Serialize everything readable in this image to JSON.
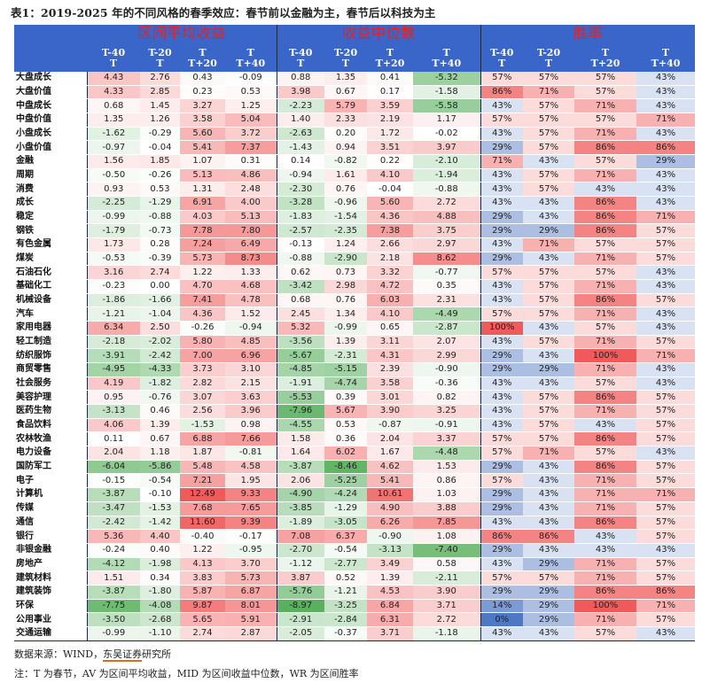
{
  "title": "表1：2019-2025 年的不同风格的春季效应：春节前以金融为主，春节后以科技为主",
  "groups": [
    "区间平均收益",
    "收益中位数",
    "胜率"
  ],
  "subheaders": [
    [
      "T-40",
      "T"
    ],
    [
      "T-20",
      "T"
    ],
    [
      "T",
      "T+20"
    ],
    [
      "T",
      "T+40"
    ],
    [
      "T-40",
      "T"
    ],
    [
      "T-20",
      "T"
    ],
    [
      "T",
      "T+20"
    ],
    [
      "T",
      "T+40"
    ],
    [
      "T-40",
      "T"
    ],
    [
      "T-20",
      "T"
    ],
    [
      "T",
      "T+20"
    ],
    [
      "T",
      "T+40"
    ]
  ],
  "colors": {
    "header_bg": "#3a66c9",
    "group_title": "#e8201f",
    "pos": "#f05a5a",
    "neg": "#58b05d",
    "wr_high": "#f05a5a",
    "wr_low": "#4f78c4"
  },
  "rows": [
    {
      "name": "大盘成长",
      "v": [
        "4.43",
        "2.76",
        "0.43",
        "-0.09",
        "0.88",
        "1.35",
        "0.41",
        "-5.32",
        "57%",
        "57%",
        "57%",
        "43%"
      ]
    },
    {
      "name": "大盘价值",
      "v": [
        "4.33",
        "2.85",
        "0.23",
        "0.53",
        "3.98",
        "0.67",
        "0.17",
        "-1.58",
        "86%",
        "71%",
        "57%",
        "43%"
      ]
    },
    {
      "name": "中盘成长",
      "v": [
        "0.68",
        "1.45",
        "3.27",
        "1.25",
        "-2.23",
        "5.79",
        "3.59",
        "-5.58",
        "43%",
        "57%",
        "71%",
        "43%"
      ]
    },
    {
      "name": "中盘价值",
      "v": [
        "1.35",
        "1.26",
        "3.58",
        "5.04",
        "1.40",
        "2.33",
        "2.19",
        "1.17",
        "57%",
        "57%",
        "57%",
        "71%"
      ]
    },
    {
      "name": "小盘成长",
      "v": [
        "-1.62",
        "-0.29",
        "5.60",
        "3.72",
        "-2.63",
        "0.20",
        "1.72",
        "-0.02",
        "43%",
        "57%",
        "71%",
        "43%"
      ]
    },
    {
      "name": "小盘价值",
      "v": [
        "-0.97",
        "-0.04",
        "5.41",
        "7.37",
        "-1.43",
        "0.94",
        "3.51",
        "3.97",
        "29%",
        "57%",
        "86%",
        "86%"
      ]
    },
    {
      "name": "金融",
      "v": [
        "1.56",
        "1.85",
        "1.07",
        "0.31",
        "0.14",
        "-0.82",
        "0.22",
        "-2.10",
        "71%",
        "43%",
        "57%",
        "29%"
      ]
    },
    {
      "name": "周期",
      "v": [
        "-0.50",
        "-0.26",
        "5.13",
        "4.86",
        "-0.94",
        "1.61",
        "4.10",
        "-1.94",
        "43%",
        "57%",
        "71%",
        "43%"
      ]
    },
    {
      "name": "消费",
      "v": [
        "0.93",
        "0.53",
        "1.31",
        "2.48",
        "-2.30",
        "0.76",
        "-0.04",
        "-0.88",
        "43%",
        "57%",
        "43%",
        "43%"
      ]
    },
    {
      "name": "成长",
      "v": [
        "-2.25",
        "-1.29",
        "6.91",
        "4.00",
        "-3.28",
        "-0.96",
        "5.60",
        "2.72",
        "43%",
        "43%",
        "86%",
        "43%"
      ]
    },
    {
      "name": "稳定",
      "v": [
        "-0.99",
        "-0.88",
        "4.03",
        "5.13",
        "-1.83",
        "-1.54",
        "4.36",
        "4.88",
        "29%",
        "43%",
        "86%",
        "71%"
      ]
    },
    {
      "name": "钢铁",
      "v": [
        "-1.79",
        "-0.73",
        "7.78",
        "7.80",
        "-2.57",
        "-2.35",
        "7.38",
        "3.75",
        "29%",
        "29%",
        "86%",
        "57%"
      ]
    },
    {
      "name": "有色金属",
      "v": [
        "1.73",
        "0.28",
        "7.24",
        "6.49",
        "-0.13",
        "1.24",
        "2.66",
        "2.97",
        "43%",
        "71%",
        "57%",
        "57%"
      ]
    },
    {
      "name": "煤炭",
      "v": [
        "-0.53",
        "-0.39",
        "5.73",
        "8.73",
        "-0.88",
        "-2.90",
        "2.18",
        "8.62",
        "29%",
        "43%",
        "71%",
        "57%"
      ]
    },
    {
      "name": "石油石化",
      "v": [
        "3.16",
        "2.74",
        "1.22",
        "1.33",
        "0.62",
        "0.73",
        "3.32",
        "-0.77",
        "57%",
        "57%",
        "57%",
        "43%"
      ]
    },
    {
      "name": "基础化工",
      "v": [
        "-0.23",
        "0.00",
        "4.70",
        "4.68",
        "-3.42",
        "2.98",
        "4.72",
        "0.35",
        "43%",
        "57%",
        "71%",
        "43%"
      ]
    },
    {
      "name": "机械设备",
      "v": [
        "-1.86",
        "-1.66",
        "7.41",
        "4.78",
        "0.68",
        "0.76",
        "6.03",
        "2.31",
        "43%",
        "57%",
        "86%",
        "57%"
      ]
    },
    {
      "name": "汽车",
      "v": [
        "-1.21",
        "-1.04",
        "4.36",
        "1.52",
        "2.45",
        "1.34",
        "4.10",
        "-4.49",
        "57%",
        "57%",
        "71%",
        "43%"
      ]
    },
    {
      "name": "家用电器",
      "v": [
        "6.34",
        "2.50",
        "-0.26",
        "-0.94",
        "5.32",
        "-0.99",
        "0.65",
        "-2.87",
        "100%",
        "43%",
        "57%",
        "43%"
      ]
    },
    {
      "name": "轻工制造",
      "v": [
        "-2.18",
        "-2.02",
        "5.80",
        "4.85",
        "-3.56",
        "1.39",
        "3.11",
        "2.07",
        "43%",
        "57%",
        "71%",
        "57%"
      ]
    },
    {
      "name": "纺织服饰",
      "v": [
        "-3.91",
        "-2.42",
        "7.00",
        "6.96",
        "-5.67",
        "-2.31",
        "4.31",
        "2.99",
        "29%",
        "43%",
        "100%",
        "71%"
      ]
    },
    {
      "name": "商贸零售",
      "v": [
        "-4.95",
        "-4.33",
        "3.73",
        "3.10",
        "-4.85",
        "-5.15",
        "2.39",
        "-0.90",
        "29%",
        "29%",
        "71%",
        "43%"
      ]
    },
    {
      "name": "社会服务",
      "v": [
        "4.19",
        "-1.82",
        "2.82",
        "2.15",
        "-1.91",
        "-4.74",
        "3.58",
        "-0.36",
        "43%",
        "43%",
        "57%",
        "43%"
      ]
    },
    {
      "name": "美容护理",
      "v": [
        "0.95",
        "-0.76",
        "3.07",
        "3.63",
        "-5.53",
        "0.39",
        "3.01",
        "0.82",
        "43%",
        "57%",
        "86%",
        "57%"
      ]
    },
    {
      "name": "医药生物",
      "v": [
        "-3.13",
        "0.46",
        "2.56",
        "3.96",
        "-7.96",
        "5.67",
        "3.90",
        "3.25",
        "43%",
        "57%",
        "71%",
        "57%"
      ]
    },
    {
      "name": "食品饮料",
      "v": [
        "4.06",
        "1.39",
        "-1.53",
        "0.98",
        "-4.55",
        "0.53",
        "-0.87",
        "-0.91",
        "43%",
        "57%",
        "43%",
        "57%"
      ]
    },
    {
      "name": "农林牧渔",
      "v": [
        "0.11",
        "0.67",
        "6.88",
        "7.66",
        "1.58",
        "0.36",
        "2.04",
        "3.37",
        "57%",
        "57%",
        "86%",
        "57%"
      ]
    },
    {
      "name": "电力设备",
      "v": [
        "2.04",
        "1.18",
        "1.87",
        "-0.81",
        "1.64",
        "6.02",
        "1.67",
        "-4.48",
        "57%",
        "71%",
        "57%",
        "43%"
      ]
    },
    {
      "name": "国防军工",
      "v": [
        "-6.04",
        "-5.86",
        "5.48",
        "4.58",
        "-3.87",
        "-8.46",
        "4.62",
        "1.53",
        "29%",
        "43%",
        "86%",
        "57%"
      ]
    },
    {
      "name": "电子",
      "v": [
        "-0.15",
        "-0.54",
        "7.21",
        "1.95",
        "2.06",
        "-5.25",
        "5.41",
        "0.86",
        "57%",
        "43%",
        "71%",
        "57%"
      ]
    },
    {
      "name": "计算机",
      "v": [
        "-3.87",
        "-0.10",
        "12.49",
        "9.33",
        "-4.90",
        "-4.24",
        "10.61",
        "1.03",
        "29%",
        "43%",
        "71%",
        "71%"
      ]
    },
    {
      "name": "传媒",
      "v": [
        "-3.47",
        "-1.53",
        "7.68",
        "7.65",
        "-3.85",
        "-1.29",
        "4.90",
        "3.88",
        "29%",
        "43%",
        "71%",
        "57%"
      ]
    },
    {
      "name": "通信",
      "v": [
        "-2.42",
        "-1.42",
        "11.60",
        "9.39",
        "-1.89",
        "-3.05",
        "6.26",
        "7.85",
        "43%",
        "43%",
        "86%",
        "57%"
      ]
    },
    {
      "name": "银行",
      "v": [
        "5.36",
        "4.40",
        "-0.40",
        "-0.17",
        "7.08",
        "6.37",
        "-0.90",
        "1.08",
        "86%",
        "86%",
        "43%",
        "57%"
      ]
    },
    {
      "name": "非银金融",
      "v": [
        "-0.24",
        "0.40",
        "1.22",
        "-0.95",
        "-2.70",
        "-0.54",
        "-3.13",
        "-7.40",
        "29%",
        "43%",
        "43%",
        "43%"
      ]
    },
    {
      "name": "房地产",
      "v": [
        "-4.12",
        "-1.98",
        "4.13",
        "3.70",
        "-1.12",
        "-2.77",
        "3.49",
        "0.58",
        "43%",
        "29%",
        "71%",
        "57%"
      ]
    },
    {
      "name": "建筑材料",
      "v": [
        "1.51",
        "0.34",
        "3.83",
        "5.73",
        "3.87",
        "0.52",
        "1.39",
        "-2.11",
        "57%",
        "57%",
        "71%",
        "57%"
      ]
    },
    {
      "name": "建筑装饰",
      "v": [
        "-3.87",
        "-1.80",
        "5.87",
        "6.87",
        "-5.76",
        "-1.21",
        "4.53",
        "3.90",
        "29%",
        "29%",
        "86%",
        "86%"
      ]
    },
    {
      "name": "环保",
      "v": [
        "-7.75",
        "-4.08",
        "9.87",
        "8.01",
        "-8.97",
        "-3.25",
        "6.84",
        "3.71",
        "14%",
        "29%",
        "100%",
        "71%"
      ]
    },
    {
      "name": "公用事业",
      "v": [
        "-3.50",
        "-2.68",
        "5.65",
        "5.91",
        "-2.91",
        "-2.84",
        "6.31",
        "2.72",
        "0%",
        "29%",
        "71%",
        "57%"
      ]
    },
    {
      "name": "交通运输",
      "v": [
        "-0.99",
        "-1.10",
        "2.74",
        "2.87",
        "-2.05",
        "-0.37",
        "3.71",
        "-1.18",
        "43%",
        "43%",
        "57%",
        "43%"
      ]
    }
  ],
  "source": {
    "prefix": "数据来源：WIND，",
    "org": "东吴证券",
    "suffix": "研究所"
  },
  "note": "注：T 为春节，AV 为区间平均收益，MID 为区间收益中位数，WR 为区间胜率"
}
